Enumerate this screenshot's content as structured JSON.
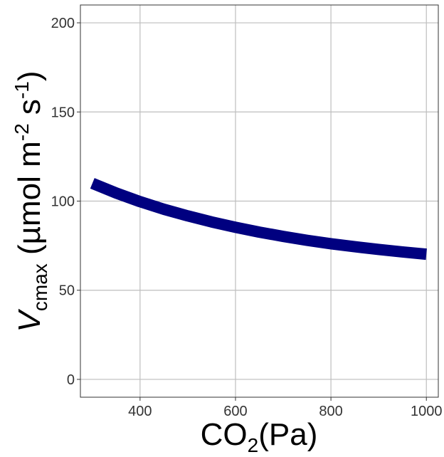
{
  "chart_data": {
    "type": "line",
    "title": "",
    "xlabel": {
      "main": "CO",
      "sub": "2",
      "rest": "(Pa)"
    },
    "ylabel": {
      "italic": "V",
      "sub": "cmax",
      "mid": " (µmol m",
      "exp1": "-2",
      "gap": " s",
      "exp2": "-1",
      "close": ")"
    },
    "xlim": [
      275,
      1025
    ],
    "ylim": [
      -10,
      210
    ],
    "xticks": [
      400,
      600,
      800,
      1000
    ],
    "yticks": [
      0,
      50,
      100,
      150,
      200
    ],
    "grid": true,
    "series": [
      {
        "color": "#000080",
        "x": [
          300,
          350,
          400,
          450,
          500,
          550,
          600,
          650,
          700,
          750,
          800,
          850,
          900,
          950,
          1000
        ],
        "y": [
          110.0,
          104.5,
          99.7,
          95.4,
          91.7,
          88.3,
          85.3,
          82.6,
          80.2,
          78.0,
          76.1,
          74.4,
          72.9,
          71.5,
          70.2
        ]
      }
    ]
  }
}
